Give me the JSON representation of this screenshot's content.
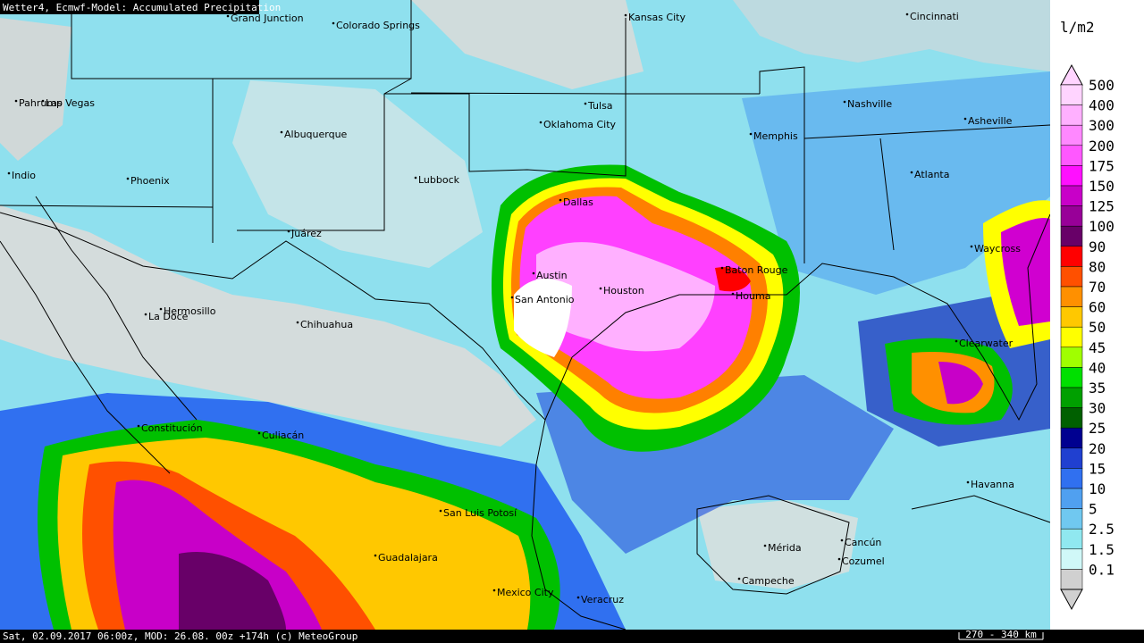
{
  "header": {
    "title": "Wetter4, Ecmwf-Model: Accumulated Precipitation"
  },
  "footer": {
    "info": "Sat, 02.09.2017 06:00z, MOD: 26.08. 00z +174h (c) MeteoGroup",
    "scale": "270 - 340 km"
  },
  "legend": {
    "unit": "l/m2",
    "items": [
      {
        "label": "500",
        "color": "#ffd4ff"
      },
      {
        "label": "400",
        "color": "#ffb0ff"
      },
      {
        "label": "300",
        "color": "#ff88ff"
      },
      {
        "label": "200",
        "color": "#ff58ff"
      },
      {
        "label": "175",
        "color": "#ff10ff"
      },
      {
        "label": "150",
        "color": "#c800c8"
      },
      {
        "label": "125",
        "color": "#980098"
      },
      {
        "label": "100",
        "color": "#680068"
      },
      {
        "label": "90",
        "color": "#ff0000"
      },
      {
        "label": "80",
        "color": "#ff5000"
      },
      {
        "label": "70",
        "color": "#ff9000"
      },
      {
        "label": "60",
        "color": "#ffc800"
      },
      {
        "label": "50",
        "color": "#ffff00"
      },
      {
        "label": "45",
        "color": "#a0ff00"
      },
      {
        "label": "40",
        "color": "#00e000"
      },
      {
        "label": "35",
        "color": "#00a000"
      },
      {
        "label": "30",
        "color": "#006000"
      },
      {
        "label": "25",
        "color": "#000090"
      },
      {
        "label": "20",
        "color": "#2040d0"
      },
      {
        "label": "15",
        "color": "#3070f0"
      },
      {
        "label": "10",
        "color": "#50a0f0"
      },
      {
        "label": "5",
        "color": "#70c8f0"
      },
      {
        "label": "2.5",
        "color": "#90e8f0"
      },
      {
        "label": "1.5",
        "color": "#d0f8f8"
      },
      {
        "label": "0.1",
        "color": "#d0d0d0"
      }
    ]
  },
  "cities": [
    "Grand Junction",
    "Colorado Springs",
    "Kansas City",
    "Cincinnati",
    "Pahrump",
    "Las Vegas",
    "Tulsa",
    "Oklahoma City",
    "Nashville",
    "Asheville",
    "Albuquerque",
    "Memphis",
    "Indio",
    "Phoenix",
    "Lubbock",
    "Atlanta",
    "Dallas",
    "Juárez",
    "Waycross",
    "Baton Rouge",
    "Austin",
    "Houston",
    "Houma",
    "San Antonio",
    "Hermosillo",
    "La Doce",
    "Chihuahua",
    "Clearwater",
    "Constitución",
    "Culiacán",
    "Havanna",
    "San Luis Potosí",
    "Cancún",
    "Mérida",
    "Guadalajara",
    "Cozumel",
    "Campeche",
    "Mexico City",
    "Veracruz"
  ]
}
